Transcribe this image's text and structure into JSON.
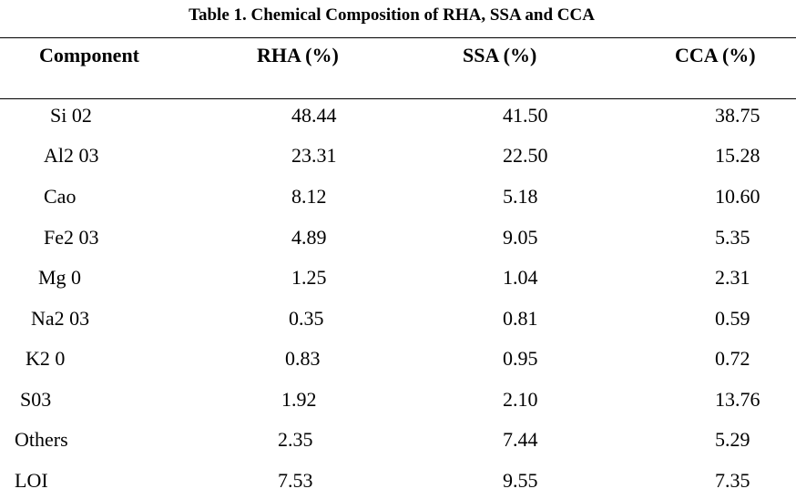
{
  "title": "Table 1. Chemical Composition of RHA, SSA and CCA",
  "headers": [
    "Component",
    "RHA (%)",
    "SSA (%)",
    "CCA (%)"
  ],
  "rows": [
    {
      "component": "Si 02",
      "rha": "48.44",
      "ssa": "41.50",
      "cca": "38.75"
    },
    {
      "component": "Al2 03",
      "rha": "23.31",
      "ssa": "22.50",
      "cca": "15.28"
    },
    {
      "component": "Cao",
      "rha": "8.12",
      "ssa": "5.18",
      "cca": "10.60"
    },
    {
      "component": "Fe2 03",
      "rha": "4.89",
      "ssa": "9.05",
      "cca": "5.35"
    },
    {
      "component": "Mg 0",
      "rha": "1.25",
      "ssa": "1.04",
      "cca": "2.31"
    },
    {
      "component": "Na2 03",
      "rha": "0.35",
      "ssa": "0.81",
      "cca": "0.59"
    },
    {
      "component": "K2 0",
      "rha": "0.83",
      "ssa": "0.95",
      "cca": "0.72"
    },
    {
      "component": "S03",
      "rha": "1.92",
      "ssa": "2.10",
      "cca": "13.76"
    },
    {
      "component": "Others",
      "rha": "2.35",
      "ssa": "7.44",
      "cca": "5.29"
    },
    {
      "component": "LOI",
      "rha": "7.53",
      "ssa": "9.55",
      "cca": "7.35"
    }
  ]
}
